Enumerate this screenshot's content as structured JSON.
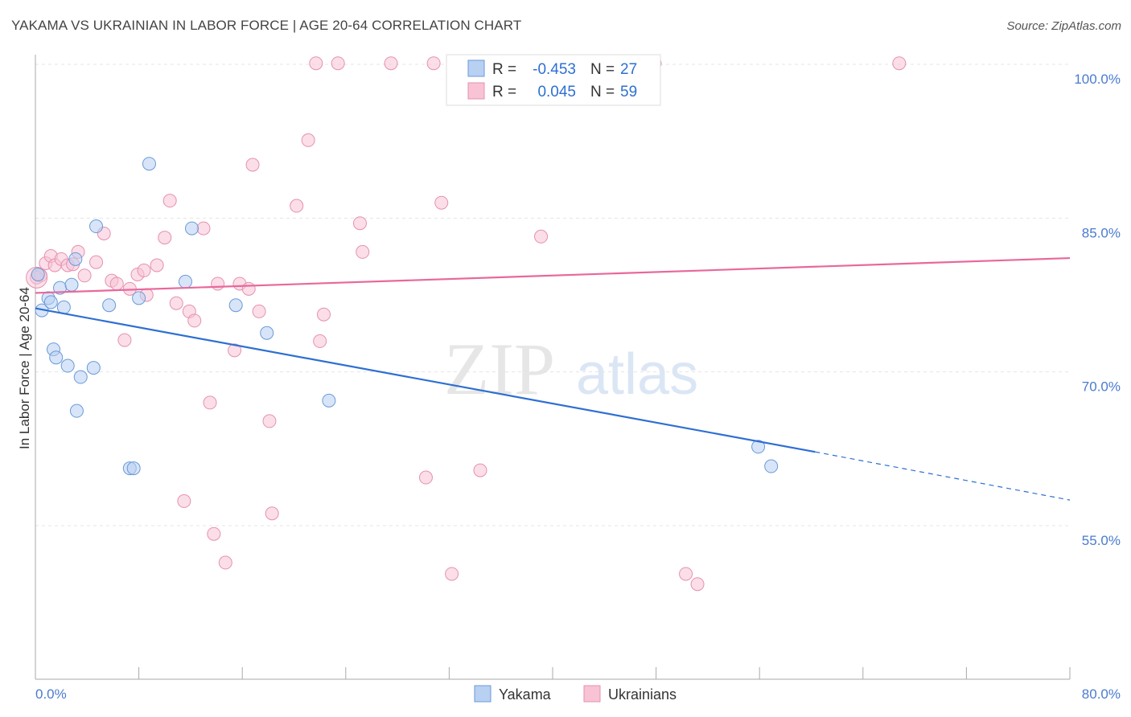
{
  "title": "YAKAMA VS UKRAINIAN IN LABOR FORCE | AGE 20-64 CORRELATION CHART",
  "source": "Source: ZipAtlas.com",
  "watermark": {
    "zip": "ZIP",
    "atlas": "atlas"
  },
  "colors": {
    "yakama": "#2e6fd2",
    "ukrainians": "#e8689a",
    "yakama_fill": "#b8d0f2",
    "ukrainians_fill": "#f7c3d5"
  },
  "legend": {
    "rows": [
      {
        "r_label": "R =",
        "r_value": "-0.453",
        "n_label": "N =",
        "n_value": "27"
      },
      {
        "r_label": "R =",
        "r_value": "0.045",
        "n_label": "N =",
        "n_value": "59"
      }
    ]
  },
  "bottom_legend": {
    "yakama": "Yakama",
    "ukrainians": "Ukrainians"
  },
  "chart_data": {
    "type": "scatter",
    "title": "YAKAMA VS UKRAINIAN IN LABOR FORCE | AGE 20-64 CORRELATION CHART",
    "xlabel": "",
    "ylabel": "In Labor Force | Age 20-64",
    "xlim": [
      0,
      80
    ],
    "ylim": [
      40,
      101.5
    ],
    "x_tick_labels": [
      "0.0%",
      "80.0%"
    ],
    "y_ticks": [
      55,
      70,
      85,
      100
    ],
    "y_tick_labels": [
      "55.0%",
      "70.0%",
      "85.0%",
      "100.0%"
    ],
    "grid": true,
    "legend_position": "top-center",
    "series": [
      {
        "name": "Yakama",
        "r": -0.453,
        "n": 27,
        "trend": {
          "x0": 0,
          "y0": 76.2,
          "x1": 60.3,
          "y1": 62.2,
          "dashed_to_x": 80,
          "dashed_to_y": 57.5
        },
        "points": [
          [
            0.2,
            79.5
          ],
          [
            0.5,
            76.0
          ],
          [
            1.0,
            77.2
          ],
          [
            1.2,
            76.8
          ],
          [
            1.4,
            72.2
          ],
          [
            1.6,
            71.4
          ],
          [
            1.9,
            78.2
          ],
          [
            2.2,
            76.3
          ],
          [
            2.5,
            70.6
          ],
          [
            2.8,
            78.5
          ],
          [
            3.2,
            66.2
          ],
          [
            3.5,
            69.5
          ],
          [
            3.1,
            81.0
          ],
          [
            4.5,
            70.4
          ],
          [
            4.7,
            84.2
          ],
          [
            5.7,
            76.5
          ],
          [
            7.3,
            60.6
          ],
          [
            7.6,
            60.6
          ],
          [
            8.0,
            77.2
          ],
          [
            8.8,
            90.3
          ],
          [
            11.6,
            78.8
          ],
          [
            12.1,
            84.0
          ],
          [
            15.5,
            76.5
          ],
          [
            17.9,
            73.8
          ],
          [
            22.7,
            67.2
          ],
          [
            55.9,
            62.7
          ],
          [
            56.9,
            60.8
          ]
        ]
      },
      {
        "name": "Ukrainians",
        "r": 0.045,
        "n": 59,
        "trend": {
          "x0": 0,
          "y0": 77.7,
          "x1": 80,
          "y1": 81.1
        },
        "points": [
          [
            0.4,
            79.4
          ],
          [
            0.8,
            80.6
          ],
          [
            1.2,
            81.3
          ],
          [
            1.5,
            80.4
          ],
          [
            2.0,
            81.0
          ],
          [
            2.5,
            80.4
          ],
          [
            2.9,
            80.5
          ],
          [
            3.3,
            81.7
          ],
          [
            3.8,
            79.4
          ],
          [
            4.7,
            80.7
          ],
          [
            5.3,
            83.5
          ],
          [
            5.9,
            78.9
          ],
          [
            6.3,
            78.6
          ],
          [
            6.9,
            73.1
          ],
          [
            7.3,
            78.1
          ],
          [
            7.9,
            79.5
          ],
          [
            8.4,
            79.9
          ],
          [
            8.6,
            77.5
          ],
          [
            9.4,
            80.4
          ],
          [
            10.0,
            83.1
          ],
          [
            10.4,
            86.7
          ],
          [
            10.9,
            76.7
          ],
          [
            11.5,
            57.4
          ],
          [
            11.9,
            75.9
          ],
          [
            12.3,
            75.0
          ],
          [
            13.0,
            84.0
          ],
          [
            13.5,
            67.0
          ],
          [
            13.8,
            54.2
          ],
          [
            14.1,
            78.6
          ],
          [
            14.7,
            51.4
          ],
          [
            15.4,
            72.1
          ],
          [
            15.8,
            78.6
          ],
          [
            16.5,
            78.1
          ],
          [
            16.8,
            90.2
          ],
          [
            17.3,
            75.9
          ],
          [
            18.1,
            65.2
          ],
          [
            18.3,
            56.2
          ],
          [
            20.2,
            86.2
          ],
          [
            21.1,
            92.6
          ],
          [
            21.7,
            100.1
          ],
          [
            22.0,
            73.0
          ],
          [
            22.3,
            75.6
          ],
          [
            23.4,
            100.1
          ],
          [
            25.1,
            84.5
          ],
          [
            25.3,
            81.7
          ],
          [
            27.5,
            100.1
          ],
          [
            30.2,
            59.7
          ],
          [
            30.8,
            100.1
          ],
          [
            31.4,
            86.5
          ],
          [
            32.2,
            50.3
          ],
          [
            34.4,
            60.4
          ],
          [
            35.1,
            100.1
          ],
          [
            35.9,
            100.1
          ],
          [
            39.1,
            83.2
          ],
          [
            47.9,
            100.1
          ],
          [
            50.3,
            50.3
          ],
          [
            51.2,
            49.3
          ],
          [
            66.8,
            100.1
          ],
          [
            0.1,
            79.2
          ]
        ]
      }
    ]
  }
}
